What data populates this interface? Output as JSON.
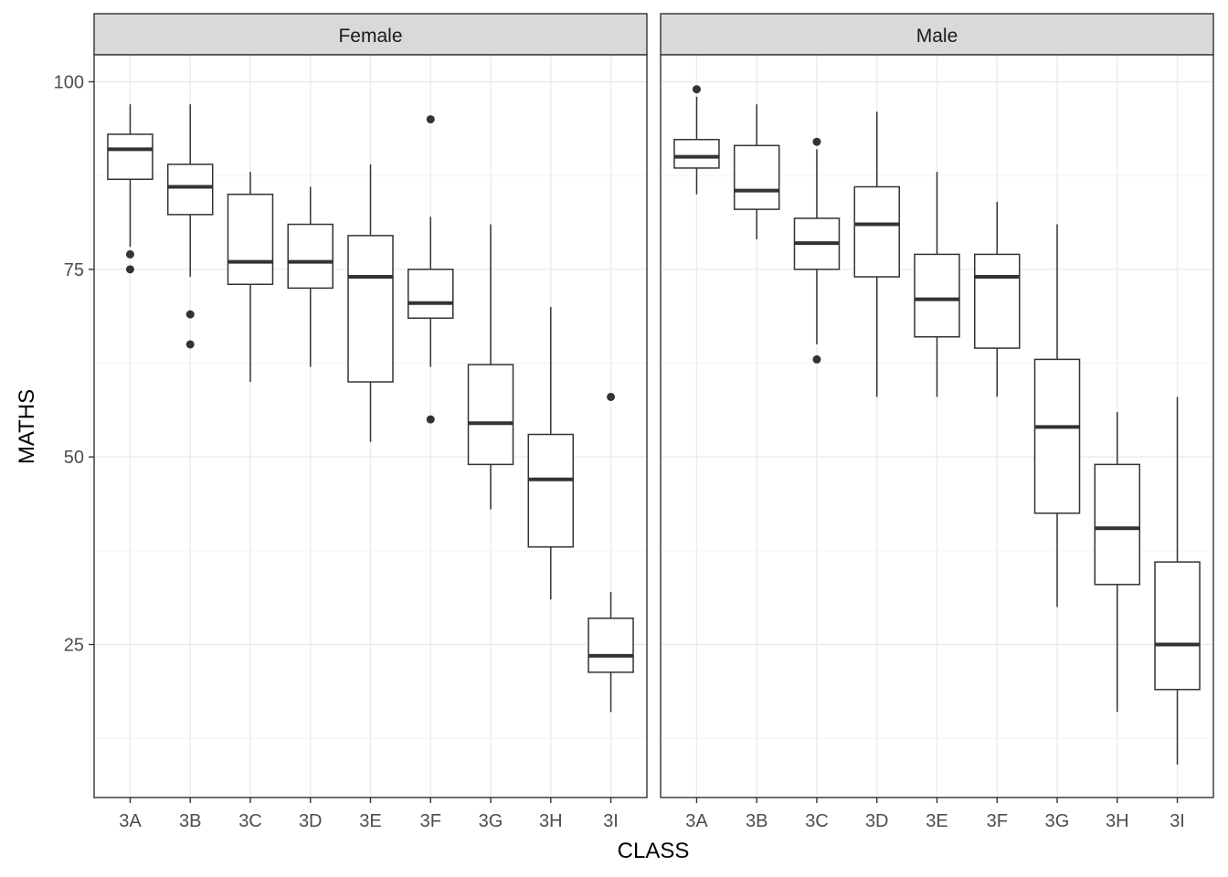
{
  "chart_data": {
    "type": "boxplot",
    "xlabel": "CLASS",
    "ylabel": "MATHS",
    "ylim": [
      5.5,
      104
    ],
    "yticks": [
      25,
      50,
      75,
      100
    ],
    "categories": [
      "3A",
      "3B",
      "3C",
      "3D",
      "3E",
      "3F",
      "3G",
      "3H",
      "3I"
    ],
    "grid": true,
    "facets": [
      {
        "label": "Female",
        "boxes": [
          {
            "class": "3A",
            "whisker_low": 78,
            "q1": 87,
            "median": 91,
            "q3": 93,
            "whisker_high": 97,
            "outliers": [
              77,
              75
            ]
          },
          {
            "class": "3B",
            "whisker_low": 74,
            "q1": 82.3,
            "median": 86,
            "q3": 89,
            "whisker_high": 97,
            "outliers": [
              69,
              65
            ]
          },
          {
            "class": "3C",
            "whisker_low": 60,
            "q1": 73,
            "median": 76,
            "q3": 85,
            "whisker_high": 88,
            "outliers": []
          },
          {
            "class": "3D",
            "whisker_low": 62,
            "q1": 72.5,
            "median": 76,
            "q3": 81,
            "whisker_high": 86,
            "outliers": []
          },
          {
            "class": "3E",
            "whisker_low": 52,
            "q1": 60,
            "median": 74,
            "q3": 79.5,
            "whisker_high": 89,
            "outliers": []
          },
          {
            "class": "3F",
            "whisker_low": 62,
            "q1": 68.5,
            "median": 70.5,
            "q3": 75,
            "whisker_high": 82,
            "outliers": [
              95,
              55
            ]
          },
          {
            "class": "3G",
            "whisker_low": 43,
            "q1": 49,
            "median": 54.5,
            "q3": 62.3,
            "whisker_high": 81,
            "outliers": []
          },
          {
            "class": "3H",
            "whisker_low": 31,
            "q1": 38,
            "median": 47,
            "q3": 53,
            "whisker_high": 70,
            "outliers": []
          },
          {
            "class": "3I",
            "whisker_low": 16,
            "q1": 21.3,
            "median": 23.5,
            "q3": 28.5,
            "whisker_high": 32,
            "outliers": [
              58
            ]
          }
        ]
      },
      {
        "label": "Male",
        "boxes": [
          {
            "class": "3A",
            "whisker_low": 85,
            "q1": 88.5,
            "median": 90,
            "q3": 92.3,
            "whisker_high": 98,
            "outliers": [
              99
            ]
          },
          {
            "class": "3B",
            "whisker_low": 79,
            "q1": 83,
            "median": 85.5,
            "q3": 91.5,
            "whisker_high": 97,
            "outliers": []
          },
          {
            "class": "3C",
            "whisker_low": 65,
            "q1": 75,
            "median": 78.5,
            "q3": 81.8,
            "whisker_high": 91,
            "outliers": [
              92,
              63
            ]
          },
          {
            "class": "3D",
            "whisker_low": 58,
            "q1": 74,
            "median": 81,
            "q3": 86,
            "whisker_high": 96,
            "outliers": []
          },
          {
            "class": "3E",
            "whisker_low": 58,
            "q1": 66,
            "median": 71,
            "q3": 77,
            "whisker_high": 88,
            "outliers": []
          },
          {
            "class": "3F",
            "whisker_low": 58,
            "q1": 64.5,
            "median": 74,
            "q3": 77,
            "whisker_high": 84,
            "outliers": []
          },
          {
            "class": "3G",
            "whisker_low": 30,
            "q1": 42.5,
            "median": 54,
            "q3": 63,
            "whisker_high": 81,
            "outliers": []
          },
          {
            "class": "3H",
            "whisker_low": 16,
            "q1": 33,
            "median": 40.5,
            "q3": 49,
            "whisker_high": 56,
            "outliers": []
          },
          {
            "class": "3I",
            "whisker_low": 9,
            "q1": 19,
            "median": 25,
            "q3": 36,
            "whisker_high": 58,
            "outliers": []
          }
        ]
      }
    ]
  },
  "colors": {
    "panel_border": "#333333",
    "strip_fill": "#d9d9d9",
    "grid_major": "#ebebeb",
    "grid_minor": "#f3f3f3",
    "box_line": "#333333",
    "median_line": "#333333",
    "outlier": "#333333",
    "tick_text": "#4d4d4d"
  }
}
